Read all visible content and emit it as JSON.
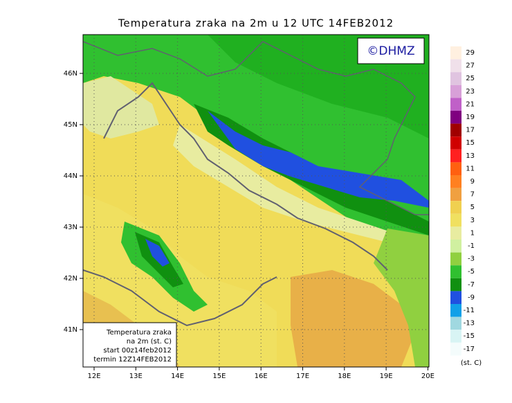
{
  "title": "Temperatura zraka na 2m u 12 UTC 14FEB2012",
  "logo": "©DHMZ",
  "lat_ticks": [
    "46N",
    "45N",
    "44N",
    "43N",
    "42N",
    "41N"
  ],
  "lon_ticks": [
    "12E",
    "13E",
    "14E",
    "15E",
    "16E",
    "17E",
    "18E",
    "19E",
    "20E"
  ],
  "colorbar": {
    "labels": [
      29,
      27,
      25,
      23,
      21,
      19,
      17,
      15,
      13,
      11,
      9,
      7,
      5,
      3,
      1,
      -1,
      -3,
      -5,
      -7,
      -9,
      -11,
      -13,
      -15,
      -17
    ],
    "colors": [
      "#fff0e0",
      "#f0e0ea",
      "#e0c4e0",
      "#d8a0d8",
      "#c060c8",
      "#800080",
      "#a00000",
      "#d00000",
      "#ff2020",
      "#ff6010",
      "#ff8020",
      "#f0a040",
      "#f0d050",
      "#f0e060",
      "#e8eca0",
      "#d0f0a0",
      "#90d040",
      "#30c030",
      "#109010",
      "#2050e0",
      "#10a0e8",
      "#a0d8e0",
      "#d8f4f4",
      "#f4fcfc"
    ],
    "unit": "(st. C)"
  },
  "info": [
    "Temperatura zraka",
    "na 2m (st. C)",
    "start 00z14feb2012",
    "termin 12Z14FEB2012"
  ]
}
